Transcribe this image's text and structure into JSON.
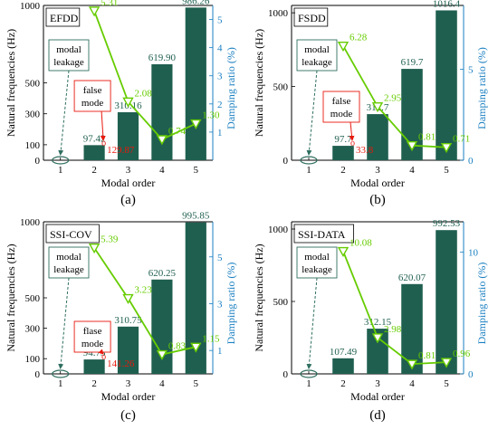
{
  "figure": {
    "shared": {
      "x_axis_label": "Modal order",
      "left_axis_label": "Natural frequencies (Hz)",
      "right_axis_label": "Damping ratio (%)",
      "x_ticks": [
        "1",
        "2",
        "3",
        "4",
        "5"
      ],
      "leakage_label": [
        "modal",
        "leakage"
      ],
      "colors": {
        "bar": "#1f5f4f",
        "bar_label": "#1f5f4f",
        "damping_line": "#66cc00",
        "damping_label": "#66cc00",
        "right_axis": "#1a7fc1",
        "false_mode": "#e8190e",
        "leakage_box": "#2f6f5f"
      }
    }
  },
  "chart_data": [
    {
      "panel_label": "(a)",
      "type": "bar",
      "title": "EFDD",
      "categories": [
        "1",
        "2",
        "3",
        "4",
        "5"
      ],
      "series": [
        {
          "values": [
            null,
            97.42,
            310.16,
            619.9,
            986.26
          ],
          "labels": [
            "",
            "97.42",
            "310.16",
            "619.90",
            "986.26"
          ]
        },
        {
          "values": [
            null,
            5.31,
            2.08,
            0.74,
            1.3
          ],
          "labels": [
            "",
            "5.31",
            "2.08",
            "0.74",
            "1.30"
          ],
          "axis": "right",
          "marker": "triangle-down"
        }
      ],
      "left_ticks": [
        "0",
        "100",
        "300",
        "500",
        "1000"
      ],
      "right_ticks": [
        "1",
        "2",
        "3",
        "4",
        "5"
      ],
      "ylim_left": [
        0,
        1000
      ],
      "ylim_right": [
        0,
        5.5
      ],
      "false_mode": {
        "label": [
          "false",
          "mode"
        ],
        "value_label": "129.87"
      },
      "modal_leakage": true
    },
    {
      "panel_label": "(b)",
      "type": "bar",
      "title": "FSDD",
      "categories": [
        "1",
        "2",
        "3",
        "4",
        "5"
      ],
      "series": [
        {
          "values": [
            null,
            97.7,
            312.7,
            619.7,
            1016.4
          ],
          "labels": [
            "",
            "97.7",
            "312.7",
            "619.7",
            "1016.4"
          ]
        },
        {
          "values": [
            null,
            6.28,
            2.95,
            0.81,
            0.71
          ],
          "labels": [
            "",
            "6.28",
            "2.95",
            "0.81",
            "0.71"
          ],
          "axis": "right",
          "marker": "triangle-down"
        }
      ],
      "left_ticks": [
        "0",
        "500",
        "1000"
      ],
      "right_ticks": [
        "0",
        "5"
      ],
      "ylim_left": [
        0,
        1050
      ],
      "ylim_right": [
        0,
        8.5
      ],
      "false_mode": {
        "label": [
          "false",
          "mode"
        ],
        "value_label": "33.8"
      },
      "modal_leakage": true
    },
    {
      "panel_label": "(c)",
      "type": "bar",
      "title": "SSI-COV",
      "categories": [
        "1",
        "2",
        "3",
        "4",
        "5"
      ],
      "series": [
        {
          "values": [
            null,
            94.73,
            310.75,
            620.25,
            995.85
          ],
          "labels": [
            "",
            "94.73",
            "310.75",
            "620.25",
            "995.85"
          ]
        },
        {
          "values": [
            null,
            5.39,
            3.23,
            0.83,
            1.15
          ],
          "labels": [
            "",
            "5.39",
            "3.23",
            "0.83",
            "1.15"
          ],
          "axis": "right",
          "marker": "triangle-down"
        }
      ],
      "left_ticks": [
        "0",
        "100",
        "300",
        "500",
        "1000"
      ],
      "right_ticks": [
        "1",
        "3",
        "5"
      ],
      "ylim_left": [
        0,
        1000
      ],
      "ylim_right": [
        0,
        6.5
      ],
      "false_mode": {
        "label": [
          "flase",
          "mode"
        ],
        "value_label": "141.26"
      },
      "modal_leakage": true
    },
    {
      "panel_label": "(d)",
      "type": "bar",
      "title": "SSI-DATA",
      "categories": [
        "1",
        "2",
        "3",
        "4",
        "5"
      ],
      "series": [
        {
          "values": [
            null,
            107.49,
            312.15,
            620.07,
            992.53
          ],
          "labels": [
            "",
            "107.49",
            "312.15",
            "620.07",
            "992.53"
          ]
        },
        {
          "values": [
            null,
            10.08,
            2.98,
            0.81,
            0.96
          ],
          "labels": [
            "",
            "10.08",
            "2.98",
            "0.81",
            "0.96"
          ],
          "axis": "right",
          "marker": "triangle-down"
        }
      ],
      "left_ticks": [
        "0",
        "500",
        "1000"
      ],
      "right_ticks": [
        "0",
        "10"
      ],
      "ylim_left": [
        0,
        1050
      ],
      "ylim_right": [
        0,
        12.5
      ],
      "false_mode": null,
      "modal_leakage": true
    }
  ]
}
